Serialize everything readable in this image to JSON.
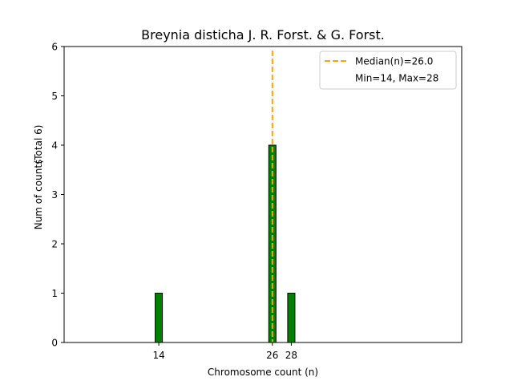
{
  "chart_data": {
    "type": "bar",
    "title": "Breynia disticha J. R. Forst. & G. Forst.",
    "xlabel": "Chromosome count (n)",
    "ylabel": "Num of counts",
    "ylabel_total": "(Total 6)",
    "xlim": [
      4,
      46
    ],
    "ylim": [
      0,
      6
    ],
    "yticks": [
      0,
      1,
      2,
      3,
      4,
      5,
      6
    ],
    "xticks": [
      14,
      26,
      28
    ],
    "bars": [
      {
        "x": 14,
        "count": 1
      },
      {
        "x": 26,
        "count": 4
      },
      {
        "x": 28,
        "count": 1
      }
    ],
    "median": 26.0,
    "legend": {
      "position": "top-right",
      "median_label": "Median(n)=26.0",
      "range_label": "Min=14, Max=28"
    },
    "colors": {
      "bar_fill": "#008000",
      "bar_edge": "#000000",
      "median_line": "#ffa500"
    },
    "grid": false
  }
}
